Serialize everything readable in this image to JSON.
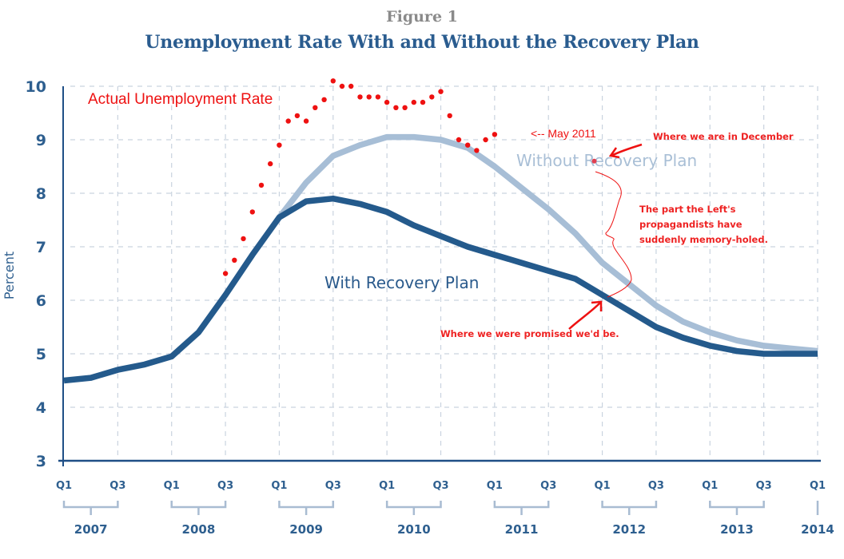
{
  "figure_label": "Figure 1",
  "title": "Unemployment Rate With and Without the Recovery Plan",
  "colors": {
    "with_plan": "#245a8c",
    "without_plan": "#a7bed6",
    "actual": "#ee1111",
    "axis": "#1f4f86",
    "grid": "#c9d3df",
    "bracket": "#a9bcd2"
  },
  "chart_data": {
    "type": "line",
    "title": "Unemployment Rate With and Without the Recovery Plan",
    "xlabel": "",
    "ylabel": "Percent",
    "ylim": [
      3,
      10
    ],
    "yticks": [
      3,
      4,
      5,
      6,
      7,
      8,
      9,
      10
    ],
    "grid": true,
    "x_quarter_ticks": [
      "Q1",
      "Q3",
      "Q1",
      "Q3",
      "Q1",
      "Q3",
      "Q1",
      "Q3",
      "Q1",
      "Q3",
      "Q1",
      "Q3",
      "Q1",
      "Q3",
      "Q1"
    ],
    "x_years": [
      "2007",
      "2008",
      "2009",
      "2010",
      "2011",
      "2012",
      "2013",
      "2014"
    ],
    "x_start": "2007 Q1",
    "x_end": "2014 Q1",
    "series": [
      {
        "name": "With Recovery Plan",
        "start_quarter_index": 0,
        "values": [
          4.5,
          4.55,
          4.7,
          4.8,
          4.95,
          5.4,
          6.1,
          6.85,
          7.55,
          7.85,
          7.9,
          7.8,
          7.65,
          7.4,
          7.2,
          7.0,
          6.85,
          6.7,
          6.55,
          6.4,
          6.1,
          5.8,
          5.5,
          5.3,
          5.15,
          5.05,
          5.0,
          5.0,
          5.0
        ]
      },
      {
        "name": "Without Recovery Plan",
        "start_quarter_index": 8,
        "values": [
          7.55,
          8.2,
          8.7,
          8.9,
          9.05,
          9.05,
          9.0,
          8.85,
          8.5,
          8.1,
          7.7,
          7.25,
          6.7,
          6.3,
          5.9,
          5.6,
          5.4,
          5.25,
          5.15,
          5.1,
          5.05
        ]
      },
      {
        "name": "Actual Unemployment Rate",
        "style": "dots",
        "unit": "monthly",
        "start_month": "2008-07",
        "values": [
          6.5,
          6.75,
          7.15,
          7.65,
          8.15,
          8.55,
          8.9,
          9.35,
          9.45,
          9.35,
          9.6,
          9.75,
          10.1,
          10.0,
          10.0,
          9.8,
          9.8,
          9.8,
          9.7,
          9.6,
          9.6,
          9.7,
          9.7,
          9.8,
          9.9,
          9.45,
          9.0,
          8.9,
          8.8,
          9.0,
          9.1
        ]
      }
    ],
    "series_labels": {
      "with_plan": "With Recovery Plan",
      "without_plan": "Without Recovery Plan",
      "actual": "Actual Unemployment Rate"
    },
    "annotations": {
      "may_2011": "<-- May 2011",
      "december": "Where we are in December",
      "december_value": 8.6,
      "memory_holed": [
        "The part the Left's",
        "propagandists have",
        "suddenly memory-holed."
      ],
      "promised": "Where we were promised we'd be."
    }
  }
}
